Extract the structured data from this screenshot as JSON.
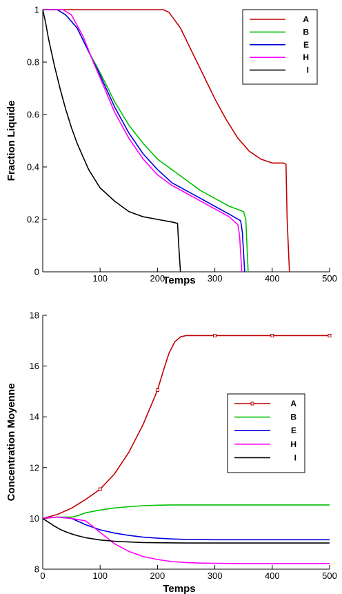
{
  "chart_data": [
    {
      "type": "line",
      "xlabel": "Temps",
      "ylabel": "Fraction Liquide",
      "xlim": [
        0,
        500
      ],
      "ylim": [
        0,
        1
      ],
      "xticks": [
        100,
        200,
        300,
        400,
        500
      ],
      "yticks": [
        0,
        0.2,
        0.4,
        0.6,
        0.8,
        1
      ],
      "xtick_labels": [
        "100",
        "200",
        "300",
        "400",
        "500"
      ],
      "ytick_labels": [
        "0",
        "0.2",
        "0.4",
        "0.6",
        "0.8",
        "1"
      ],
      "grid": false,
      "legend_position": "top-right",
      "series": [
        {
          "name": "A",
          "color": "#c00000",
          "markers": false,
          "x": [
            0,
            100,
            180,
            210,
            220,
            240,
            260,
            280,
            300,
            320,
            340,
            360,
            380,
            400,
            420,
            424,
            426,
            430
          ],
          "y": [
            1,
            1,
            1,
            1,
            0.99,
            0.93,
            0.84,
            0.75,
            0.66,
            0.58,
            0.51,
            0.46,
            0.43,
            0.415,
            0.415,
            0.41,
            0.2,
            0
          ]
        },
        {
          "name": "B",
          "color": "#00c000",
          "markers": false,
          "x": [
            0,
            25,
            40,
            60,
            80,
            100,
            125,
            150,
            175,
            200,
            225,
            250,
            275,
            300,
            325,
            350,
            354,
            358
          ],
          "y": [
            1,
            1,
            0.98,
            0.93,
            0.84,
            0.76,
            0.65,
            0.56,
            0.49,
            0.43,
            0.39,
            0.35,
            0.31,
            0.28,
            0.25,
            0.23,
            0.2,
            0
          ]
        },
        {
          "name": "E",
          "color": "#0000dd",
          "markers": false,
          "x": [
            0,
            25,
            40,
            60,
            80,
            100,
            125,
            150,
            175,
            200,
            225,
            250,
            275,
            300,
            325,
            345,
            348,
            352
          ],
          "y": [
            1,
            1,
            0.98,
            0.93,
            0.84,
            0.75,
            0.63,
            0.53,
            0.45,
            0.39,
            0.34,
            0.31,
            0.28,
            0.25,
            0.22,
            0.195,
            0.15,
            0
          ]
        },
        {
          "name": "H",
          "color": "#ff00ff",
          "markers": false,
          "x": [
            0,
            35,
            50,
            70,
            90,
            100,
            125,
            150,
            175,
            200,
            225,
            250,
            275,
            300,
            325,
            340,
            343,
            347
          ],
          "y": [
            1,
            1,
            0.98,
            0.9,
            0.79,
            0.74,
            0.61,
            0.51,
            0.43,
            0.37,
            0.33,
            0.3,
            0.27,
            0.24,
            0.21,
            0.18,
            0.14,
            0
          ]
        },
        {
          "name": "I",
          "color": "#000000",
          "markers": false,
          "x": [
            0,
            5,
            10,
            20,
            30,
            40,
            50,
            60,
            70,
            80,
            100,
            125,
            150,
            175,
            200,
            225,
            235,
            237,
            240
          ],
          "y": [
            1,
            0.95,
            0.89,
            0.79,
            0.7,
            0.62,
            0.55,
            0.49,
            0.44,
            0.39,
            0.32,
            0.27,
            0.23,
            0.21,
            0.2,
            0.19,
            0.185,
            0.1,
            0
          ]
        }
      ]
    },
    {
      "type": "line",
      "xlabel": "Temps",
      "ylabel": "Concentration Moyenne",
      "xlim": [
        0,
        500
      ],
      "ylim": [
        8,
        18
      ],
      "xticks": [
        0,
        100,
        200,
        300,
        400,
        500
      ],
      "yticks": [
        8,
        10,
        12,
        14,
        16,
        18
      ],
      "xtick_labels": [
        "0",
        "100",
        "200",
        "300",
        "400",
        "500"
      ],
      "ytick_labels": [
        "8",
        "10",
        "12",
        "14",
        "16",
        "18"
      ],
      "grid": false,
      "legend_position": "center-right",
      "series": [
        {
          "name": "A",
          "color": "#c00000",
          "markers": true,
          "marker_x": [
            100,
            200,
            300,
            400,
            500
          ],
          "x": [
            0,
            25,
            50,
            75,
            100,
            125,
            150,
            175,
            200,
            210,
            220,
            230,
            240,
            250,
            275,
            300,
            400,
            500
          ],
          "y": [
            10,
            10.15,
            10.4,
            10.75,
            11.15,
            11.75,
            12.6,
            13.7,
            15.05,
            15.8,
            16.5,
            16.95,
            17.15,
            17.2,
            17.2,
            17.2,
            17.2,
            17.2
          ]
        },
        {
          "name": "B",
          "color": "#00c000",
          "markers": false,
          "x": [
            0,
            25,
            50,
            60,
            75,
            100,
            125,
            150,
            175,
            200,
            225,
            250,
            300,
            400,
            500
          ],
          "y": [
            10,
            10.05,
            10.05,
            10.1,
            10.22,
            10.33,
            10.41,
            10.46,
            10.5,
            10.52,
            10.53,
            10.53,
            10.53,
            10.53,
            10.53
          ]
        },
        {
          "name": "E",
          "color": "#0000dd",
          "markers": false,
          "x": [
            0,
            25,
            50,
            75,
            100,
            125,
            150,
            175,
            200,
            225,
            250,
            300,
            400,
            500
          ],
          "y": [
            10,
            10.05,
            10,
            9.75,
            9.55,
            9.42,
            9.33,
            9.26,
            9.22,
            9.19,
            9.17,
            9.16,
            9.16,
            9.16
          ]
        },
        {
          "name": "H",
          "color": "#ff00ff",
          "markers": false,
          "x": [
            0,
            25,
            50,
            75,
            100,
            125,
            150,
            175,
            200,
            225,
            250,
            275,
            300,
            350,
            400,
            500
          ],
          "y": [
            10,
            10.05,
            10,
            9.9,
            9.45,
            9,
            8.7,
            8.5,
            8.38,
            8.3,
            8.26,
            8.24,
            8.23,
            8.22,
            8.22,
            8.22
          ]
        },
        {
          "name": "I",
          "color": "#000000",
          "markers": false,
          "x": [
            0,
            10,
            20,
            30,
            40,
            50,
            60,
            75,
            100,
            125,
            150,
            175,
            200,
            250,
            300,
            400,
            500
          ],
          "y": [
            10,
            9.85,
            9.7,
            9.57,
            9.47,
            9.39,
            9.32,
            9.24,
            9.15,
            9.1,
            9.07,
            9.05,
            9.04,
            9.03,
            9.03,
            9.03,
            9.03
          ]
        }
      ]
    }
  ]
}
